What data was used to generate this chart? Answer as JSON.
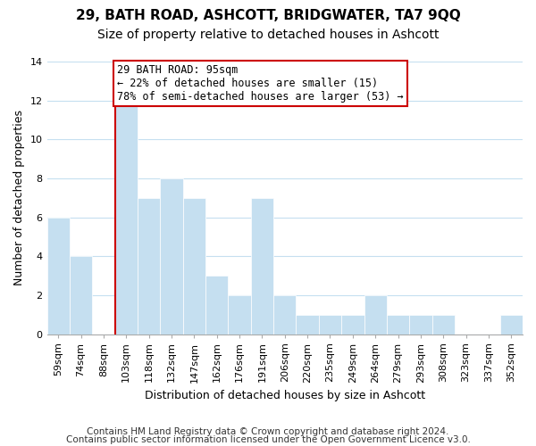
{
  "title1": "29, BATH ROAD, ASHCOTT, BRIDGWATER, TA7 9QQ",
  "title2": "Size of property relative to detached houses in Ashcott",
  "xlabel": "Distribution of detached houses by size in Ashcott",
  "ylabel": "Number of detached properties",
  "categories": [
    "59sqm",
    "74sqm",
    "88sqm",
    "103sqm",
    "118sqm",
    "132sqm",
    "147sqm",
    "162sqm",
    "176sqm",
    "191sqm",
    "206sqm",
    "220sqm",
    "235sqm",
    "249sqm",
    "264sqm",
    "279sqm",
    "293sqm",
    "308sqm",
    "323sqm",
    "337sqm",
    "352sqm"
  ],
  "values": [
    6,
    4,
    0,
    12,
    7,
    8,
    7,
    3,
    2,
    7,
    2,
    1,
    1,
    1,
    2,
    1,
    1,
    1,
    0,
    0,
    1
  ],
  "bar_color": "#c5dff0",
  "bar_edge_color": "#ffffff",
  "vline_color": "#cc0000",
  "annotation_text": "29 BATH ROAD: 95sqm\n← 22% of detached houses are smaller (15)\n78% of semi-detached houses are larger (53) →",
  "annotation_box_edge": "#cc0000",
  "annotation_box_face": "#ffffff",
  "ylim": [
    0,
    14
  ],
  "yticks": [
    0,
    2,
    4,
    6,
    8,
    10,
    12,
    14
  ],
  "footer1": "Contains HM Land Registry data © Crown copyright and database right 2024.",
  "footer2": "Contains public sector information licensed under the Open Government Licence v3.0.",
  "background_color": "#ffffff",
  "grid_color": "#c5dff0",
  "title1_fontsize": 11,
  "title2_fontsize": 10,
  "xlabel_fontsize": 9,
  "ylabel_fontsize": 9,
  "tick_fontsize": 8,
  "footer_fontsize": 7.5
}
